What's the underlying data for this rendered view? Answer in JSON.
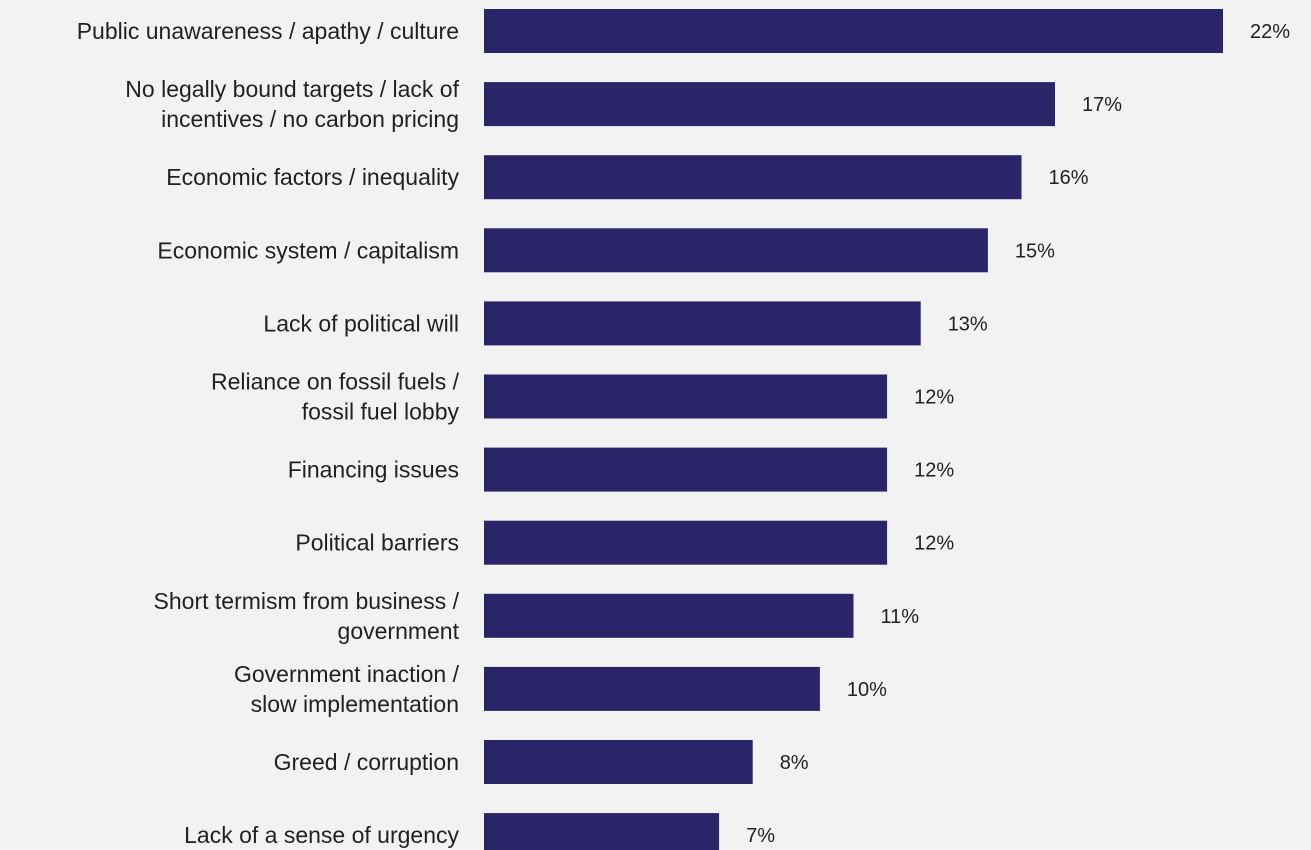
{
  "chart_data": {
    "type": "bar",
    "orientation": "horizontal",
    "title": "",
    "xlabel": "",
    "ylabel": "",
    "bar_color": "#2a2568",
    "background_color": "#f1f2f1",
    "grid": false,
    "legend": "none",
    "xlim": [
      0,
      22
    ],
    "categories": [
      [
        "Public unawareness / apathy / culture"
      ],
      [
        "No legally bound targets / lack of",
        "incentives / no carbon pricing"
      ],
      [
        "Economic factors / inequality"
      ],
      [
        "Economic system / capitalism"
      ],
      [
        "Lack of political will"
      ],
      [
        "Reliance on fossil fuels /",
        "fossil fuel lobby"
      ],
      [
        "Financing issues"
      ],
      [
        "Political barriers"
      ],
      [
        "Short termism from business /",
        "government"
      ],
      [
        "Government inaction /",
        "slow implementation"
      ],
      [
        "Greed / corruption"
      ],
      [
        "Lack of a sense of urgency"
      ]
    ],
    "values": [
      22,
      17,
      16,
      15,
      13,
      12,
      12,
      12,
      11,
      10,
      8,
      7
    ],
    "value_labels": [
      "22%",
      "17%",
      "16%",
      "15%",
      "13%",
      "12%",
      "12%",
      "12%",
      "11%",
      "10%",
      "8%",
      "7%"
    ]
  }
}
